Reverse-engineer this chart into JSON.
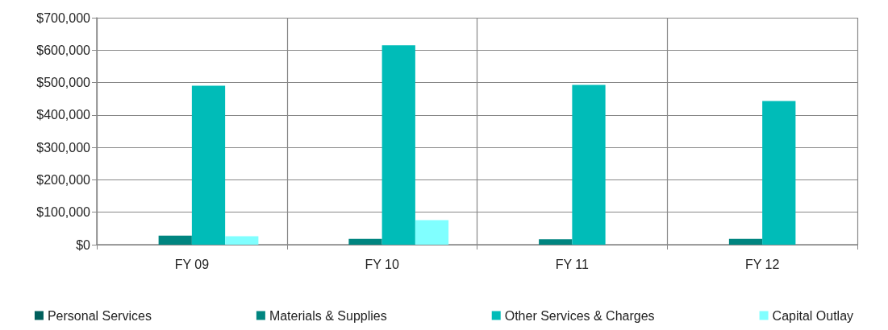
{
  "chart_data": {
    "type": "bar",
    "categories": [
      "FY 09",
      "FY 10",
      "FY 11",
      "FY 12"
    ],
    "series": [
      {
        "name": "Personal Services",
        "color": "#005f5c",
        "values": [
          0,
          0,
          0,
          0
        ]
      },
      {
        "name": "Materials & Supplies",
        "color": "#008580",
        "values": [
          28000,
          18000,
          17000,
          18000
        ]
      },
      {
        "name": "Other Services & Charges",
        "color": "#00bcb8",
        "values": [
          490000,
          615000,
          493000,
          443000
        ]
      },
      {
        "name": "Capital Outlay",
        "color": "#80ffff",
        "values": [
          26000,
          76000,
          0,
          0
        ]
      }
    ],
    "ylim": [
      0,
      700000
    ],
    "yticks": [
      {
        "value": 0,
        "label": "$0"
      },
      {
        "value": 100000,
        "label": "$100,000"
      },
      {
        "value": 200000,
        "label": "$200,000"
      },
      {
        "value": 300000,
        "label": "$300,000"
      },
      {
        "value": 400000,
        "label": "$400,000"
      },
      {
        "value": 500000,
        "label": "$500,000"
      },
      {
        "value": 600000,
        "label": "$600,000"
      },
      {
        "value": 700000,
        "label": "$700,000"
      }
    ],
    "grid": true,
    "legend": "bottom"
  }
}
